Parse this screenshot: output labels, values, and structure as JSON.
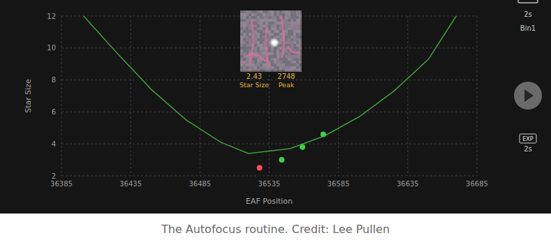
{
  "chart_data": {
    "type": "scatter",
    "x_label": "EAF Position",
    "y_label": "Star Size",
    "xlim": [
      36385,
      36685
    ],
    "xticks": [
      36385,
      36435,
      36485,
      36535,
      36585,
      36635,
      36685
    ],
    "ylim": [
      2,
      12
    ],
    "yticks": [
      2,
      4,
      6,
      8,
      10,
      12
    ],
    "grid": true,
    "series": [
      {
        "type": "line",
        "color": "#3f9e3a",
        "x": [
          36401,
          36425,
          36450,
          36475,
          36500,
          36520,
          36550,
          36575,
          36600,
          36625,
          36650,
          36670
        ],
        "values": [
          12.0,
          9.7,
          7.4,
          5.5,
          4.1,
          3.4,
          3.7,
          4.5,
          5.7,
          7.3,
          9.3,
          12.0
        ]
      },
      {
        "type": "scatter",
        "marker": "circle",
        "colors": [
          "#ff4d4d",
          "#3fcf3f",
          "#3fcf3f",
          "#3fcf3f"
        ],
        "x": [
          36528,
          36544,
          36559,
          36574
        ],
        "values": [
          2.5,
          3.0,
          3.8,
          4.6
        ]
      }
    ]
  },
  "inset": {
    "star_size": 2.43,
    "star_size_label": "Star Size",
    "peak": 2748,
    "peak_label": "Peak"
  },
  "side_panel": {
    "exposure": "2s",
    "binning": "Bin1",
    "exp_icon": "EXP",
    "exp_value": "2s"
  },
  "caption": "The Autofocus routine. Credit: Lee Pullen"
}
